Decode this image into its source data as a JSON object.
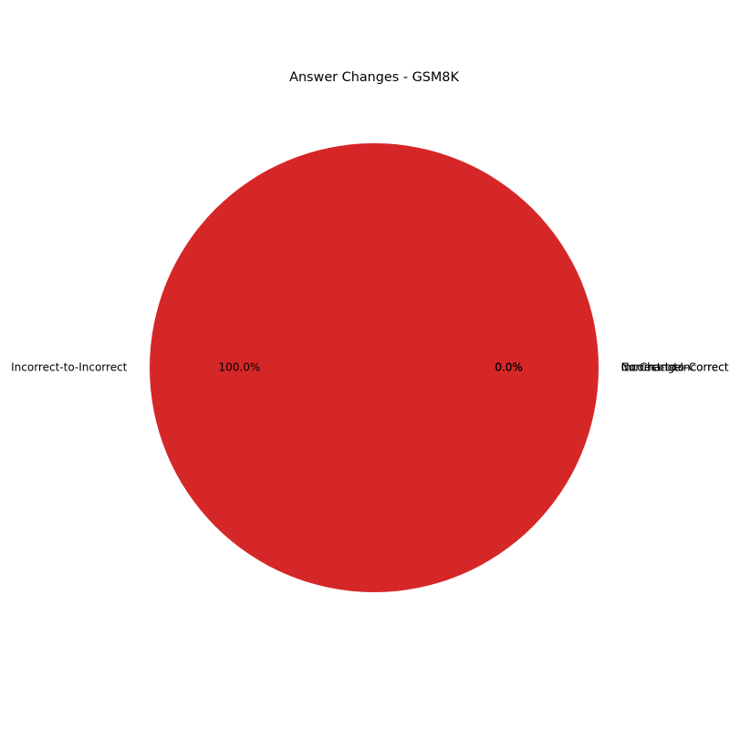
{
  "chart_data": {
    "type": "pie",
    "title": "Answer Changes - GSM8K",
    "slices": [
      {
        "label": "No Change",
        "value": 0.0,
        "pct_label": "0.0%",
        "color": "#1f77b4"
      },
      {
        "label": "Correct-to-Incorrect",
        "value": 0.0,
        "pct_label": "0.0%",
        "color": "#ff7f0e"
      },
      {
        "label": "Incorrect-to-Correct",
        "value": 0.0,
        "pct_label": "0.0%",
        "color": "#2ca02c"
      },
      {
        "label": "Incorrect-to-Incorrect",
        "value": 100.0,
        "pct_label": "100.0%",
        "color": "#d62728"
      }
    ],
    "start_angle": 0,
    "counterclockwise": true
  }
}
